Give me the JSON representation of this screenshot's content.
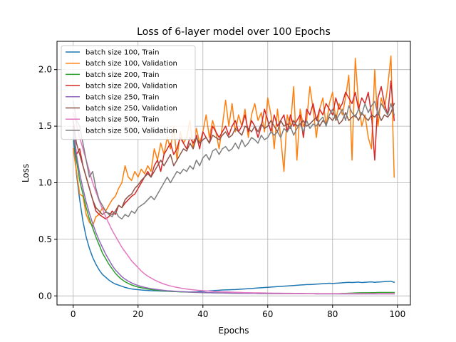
{
  "chart_data": {
    "type": "line",
    "title": "Loss of 6-layer model over 100 Epochs",
    "xlabel": "Epochs",
    "ylabel": "Loss",
    "xlim": [
      -5,
      104
    ],
    "ylim": [
      -0.08,
      2.25
    ],
    "xticks": [
      0,
      20,
      40,
      60,
      80,
      100
    ],
    "yticks": [
      0.0,
      0.5,
      1.0,
      1.5,
      2.0
    ],
    "ytick_labels": [
      "0.0",
      "0.5",
      "1.0",
      "1.5",
      "2.0"
    ],
    "grid": true,
    "legend_position": "top-left",
    "series": [
      {
        "name": "batch size 100, Train",
        "color": "#1f77b4",
        "values": [
          1.42,
          1.08,
          0.85,
          0.66,
          0.52,
          0.42,
          0.34,
          0.28,
          0.23,
          0.19,
          0.165,
          0.14,
          0.12,
          0.105,
          0.095,
          0.085,
          0.075,
          0.068,
          0.062,
          0.058,
          0.055,
          0.052,
          0.05,
          0.048,
          0.046,
          0.045,
          0.044,
          0.043,
          0.042,
          0.041,
          0.04,
          0.039,
          0.038,
          0.037,
          0.036,
          0.036,
          0.035,
          0.035,
          0.036,
          0.038,
          0.04,
          0.042,
          0.044,
          0.046,
          0.048,
          0.05,
          0.052,
          0.053,
          0.054,
          0.055,
          0.056,
          0.058,
          0.06,
          0.062,
          0.064,
          0.066,
          0.068,
          0.07,
          0.072,
          0.074,
          0.076,
          0.078,
          0.08,
          0.082,
          0.084,
          0.086,
          0.088,
          0.09,
          0.092,
          0.094,
          0.096,
          0.098,
          0.1,
          0.1,
          0.102,
          0.104,
          0.106,
          0.108,
          0.11,
          0.112,
          0.11,
          0.112,
          0.114,
          0.116,
          0.118,
          0.12,
          0.118,
          0.12,
          0.122,
          0.118,
          0.12,
          0.122,
          0.124,
          0.12,
          0.122,
          0.124,
          0.126,
          0.128,
          0.13,
          0.12
        ]
      },
      {
        "name": "batch size 100, Validation",
        "color": "#ff7f0e",
        "values": [
          1.3,
          1.1,
          0.9,
          0.88,
          0.72,
          0.65,
          0.62,
          0.7,
          0.72,
          0.78,
          0.75,
          0.8,
          0.85,
          0.88,
          0.95,
          1.0,
          1.15,
          1.05,
          1.02,
          1.1,
          1.05,
          1.12,
          1.08,
          1.15,
          1.1,
          1.3,
          1.2,
          1.35,
          1.25,
          1.4,
          1.3,
          1.5,
          1.2,
          1.45,
          1.35,
          1.4,
          1.55,
          1.3,
          1.48,
          1.35,
          1.45,
          1.6,
          1.4,
          1.55,
          1.45,
          1.3,
          1.5,
          1.73,
          1.5,
          1.7,
          1.45,
          1.6,
          1.5,
          1.65,
          1.4,
          1.6,
          1.7,
          1.55,
          1.62,
          1.45,
          1.75,
          1.6,
          1.3,
          1.65,
          1.4,
          1.1,
          1.6,
          1.5,
          1.85,
          1.2,
          1.65,
          1.5,
          1.55,
          1.85,
          1.65,
          1.4,
          1.65,
          1.75,
          1.5,
          1.7,
          1.8,
          1.55,
          1.7,
          1.6,
          1.75,
          1.95,
          1.2,
          2.1,
          1.7,
          1.5,
          1.6,
          1.4,
          1.3,
          2.0,
          1.5,
          1.75,
          1.65,
          1.85,
          2.12,
          1.05
        ]
      },
      {
        "name": "batch size 200, Train",
        "color": "#2ca02c",
        "values": [
          1.45,
          1.2,
          1.02,
          0.9,
          0.78,
          0.68,
          0.6,
          0.52,
          0.45,
          0.38,
          0.33,
          0.28,
          0.24,
          0.2,
          0.17,
          0.145,
          0.125,
          0.11,
          0.097,
          0.087,
          0.078,
          0.072,
          0.066,
          0.061,
          0.057,
          0.053,
          0.05,
          0.047,
          0.045,
          0.043,
          0.041,
          0.039,
          0.037,
          0.036,
          0.035,
          0.034,
          0.033,
          0.032,
          0.031,
          0.03,
          0.029,
          0.028,
          0.028,
          0.027,
          0.027,
          0.026,
          0.026,
          0.025,
          0.025,
          0.024,
          0.024,
          0.023,
          0.023,
          0.023,
          0.022,
          0.022,
          0.022,
          0.021,
          0.021,
          0.021,
          0.02,
          0.02,
          0.02,
          0.02,
          0.02,
          0.02,
          0.02,
          0.02,
          0.02,
          0.02,
          0.02,
          0.02,
          0.02,
          0.02,
          0.02,
          0.02,
          0.02,
          0.02,
          0.02,
          0.02,
          0.02,
          0.02,
          0.02,
          0.022,
          0.022,
          0.024,
          0.025,
          0.026,
          0.027,
          0.028,
          0.028,
          0.028,
          0.029,
          0.029,
          0.03,
          0.03,
          0.03,
          0.03,
          0.03,
          0.03
        ]
      },
      {
        "name": "batch size 200, Validation",
        "color": "#d62728",
        "values": [
          1.5,
          1.25,
          1.3,
          1.15,
          1.05,
          0.95,
          0.85,
          0.75,
          0.72,
          0.7,
          0.68,
          0.7,
          0.75,
          0.72,
          0.8,
          0.78,
          0.82,
          0.85,
          0.88,
          0.9,
          0.95,
          1.0,
          1.05,
          1.1,
          1.05,
          1.15,
          1.2,
          1.1,
          1.25,
          1.3,
          1.35,
          1.25,
          1.3,
          1.4,
          1.35,
          1.3,
          1.4,
          1.35,
          1.42,
          1.3,
          1.45,
          1.4,
          1.35,
          1.5,
          1.45,
          1.4,
          1.45,
          1.5,
          1.42,
          1.5,
          1.55,
          1.45,
          1.5,
          1.6,
          1.45,
          1.55,
          1.5,
          1.4,
          1.5,
          1.65,
          1.55,
          1.45,
          1.6,
          1.5,
          1.55,
          1.6,
          1.45,
          1.6,
          1.5,
          1.55,
          1.6,
          1.4,
          1.65,
          1.6,
          1.7,
          1.55,
          1.65,
          1.6,
          1.7,
          1.65,
          1.6,
          1.75,
          1.65,
          1.7,
          1.8,
          1.75,
          1.7,
          1.8,
          1.65,
          1.75,
          1.7,
          1.8,
          1.6,
          1.2,
          1.75,
          1.85,
          1.7,
          1.6,
          1.9,
          1.55
        ]
      },
      {
        "name": "batch size 250, Train",
        "color": "#9467bd",
        "values": [
          1.48,
          1.25,
          1.08,
          0.95,
          0.83,
          0.73,
          0.64,
          0.56,
          0.49,
          0.43,
          0.37,
          0.32,
          0.27,
          0.23,
          0.2,
          0.17,
          0.148,
          0.13,
          0.115,
          0.102,
          0.092,
          0.083,
          0.076,
          0.07,
          0.064,
          0.06,
          0.056,
          0.052,
          0.049,
          0.046,
          0.044,
          0.042,
          0.04,
          0.038,
          0.037,
          0.035,
          0.034,
          0.033,
          0.032,
          0.031,
          0.03,
          0.029,
          0.029,
          0.028,
          0.027,
          0.027,
          0.026,
          0.026,
          0.025,
          0.025,
          0.024,
          0.024,
          0.023,
          0.023,
          0.023,
          0.022,
          0.022,
          0.022,
          0.021,
          0.021,
          0.021,
          0.02,
          0.02,
          0.02,
          0.02,
          0.02,
          0.02,
          0.02,
          0.019,
          0.019,
          0.019,
          0.019,
          0.019,
          0.019,
          0.019,
          0.018,
          0.018,
          0.018,
          0.018,
          0.018,
          0.018,
          0.018,
          0.018,
          0.018,
          0.018,
          0.018,
          0.018,
          0.018,
          0.018,
          0.018,
          0.018,
          0.018,
          0.018,
          0.018,
          0.018,
          0.018,
          0.018,
          0.018,
          0.018,
          0.018
        ]
      },
      {
        "name": "batch size 250, Validation",
        "color": "#8c564b",
        "values": [
          1.55,
          1.35,
          1.25,
          1.15,
          1.05,
          0.95,
          0.85,
          0.78,
          0.75,
          0.72,
          0.74,
          0.73,
          0.72,
          0.75,
          0.8,
          0.78,
          0.85,
          0.88,
          0.9,
          0.95,
          0.98,
          1.02,
          1.05,
          1.08,
          1.05,
          1.1,
          1.15,
          1.2,
          1.15,
          1.2,
          1.25,
          1.15,
          1.2,
          1.25,
          1.3,
          1.28,
          1.35,
          1.3,
          1.4,
          1.35,
          1.38,
          1.4,
          1.35,
          1.42,
          1.4,
          1.38,
          1.42,
          1.45,
          1.4,
          1.42,
          1.48,
          1.45,
          1.42,
          1.5,
          1.48,
          1.45,
          1.5,
          1.45,
          1.52,
          1.48,
          1.5,
          1.55,
          1.5,
          1.45,
          1.55,
          1.5,
          1.52,
          1.48,
          1.55,
          1.5,
          1.52,
          1.55,
          1.5,
          1.52,
          1.55,
          1.58,
          1.5,
          1.55,
          1.52,
          1.58,
          1.55,
          1.6,
          1.52,
          1.55,
          1.62,
          1.55,
          1.58,
          1.6,
          1.55,
          1.62,
          1.58,
          1.55,
          1.6,
          1.58,
          1.62,
          1.55,
          1.6,
          1.58,
          1.62,
          1.7
        ]
      },
      {
        "name": "batch size 500, Train",
        "color": "#e377c2",
        "values": [
          1.62,
          1.52,
          1.4,
          1.3,
          1.2,
          1.1,
          1.0,
          0.92,
          0.84,
          0.77,
          0.7,
          0.64,
          0.58,
          0.53,
          0.48,
          0.43,
          0.39,
          0.35,
          0.31,
          0.28,
          0.25,
          0.22,
          0.195,
          0.175,
          0.158,
          0.142,
          0.128,
          0.116,
          0.105,
          0.096,
          0.088,
          0.081,
          0.075,
          0.07,
          0.065,
          0.061,
          0.057,
          0.054,
          0.051,
          0.048,
          0.046,
          0.044,
          0.042,
          0.04,
          0.038,
          0.037,
          0.036,
          0.035,
          0.034,
          0.033,
          0.032,
          0.031,
          0.03,
          0.029,
          0.029,
          0.028,
          0.027,
          0.027,
          0.026,
          0.026,
          0.025,
          0.025,
          0.024,
          0.024,
          0.024,
          0.023,
          0.023,
          0.023,
          0.022,
          0.022,
          0.022,
          0.022,
          0.021,
          0.021,
          0.021,
          0.021,
          0.02,
          0.02,
          0.02,
          0.02,
          0.02,
          0.02,
          0.02,
          0.02,
          0.02,
          0.02,
          0.02,
          0.02,
          0.02,
          0.02,
          0.02,
          0.02,
          0.02,
          0.02,
          0.02,
          0.02,
          0.02,
          0.02,
          0.02,
          0.02
        ]
      },
      {
        "name": "batch size 500, Validation",
        "color": "#7f7f7f",
        "values": [
          1.72,
          1.55,
          1.5,
          1.35,
          1.2,
          1.05,
          1.1,
          0.95,
          0.85,
          0.8,
          0.75,
          0.72,
          0.7,
          0.75,
          0.7,
          0.68,
          0.72,
          0.7,
          0.75,
          0.73,
          0.78,
          0.8,
          0.82,
          0.85,
          0.88,
          0.85,
          0.9,
          0.95,
          1.0,
          1.05,
          1.0,
          1.05,
          1.1,
          1.08,
          1.12,
          1.1,
          1.15,
          1.12,
          1.2,
          1.15,
          1.22,
          1.25,
          1.2,
          1.28,
          1.3,
          1.25,
          1.3,
          1.32,
          1.28,
          1.3,
          1.35,
          1.3,
          1.38,
          1.32,
          1.35,
          1.4,
          1.38,
          1.35,
          1.42,
          1.38,
          1.4,
          1.45,
          1.42,
          1.45,
          1.4,
          1.48,
          1.45,
          1.5,
          1.42,
          1.48,
          1.52,
          1.45,
          1.55,
          1.48,
          1.52,
          1.5,
          1.55,
          1.58,
          1.5,
          1.6,
          1.65,
          1.55,
          1.6,
          1.65,
          1.55,
          1.68,
          1.62,
          1.58,
          1.65,
          1.6,
          1.7,
          1.62,
          1.68,
          1.72,
          1.6,
          1.7,
          1.65,
          1.6,
          1.7,
          1.6
        ]
      }
    ]
  }
}
